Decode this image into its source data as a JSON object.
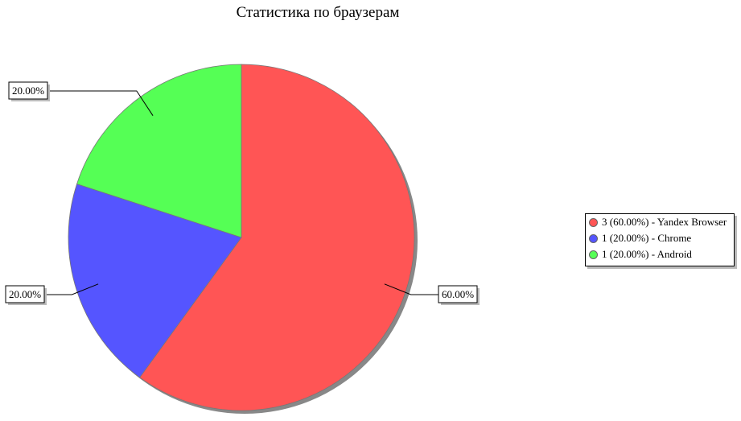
{
  "chart_data": {
    "type": "pie",
    "title": "Статистика по браузерам",
    "slices": [
      {
        "label": "Yandex Browser",
        "value": 3,
        "percent": "60.00%",
        "color": "#ff5555",
        "legend": "3 (60.00%) - Yandex Browser"
      },
      {
        "label": "Chrome",
        "value": 1,
        "percent": "20.00%",
        "color": "#5555ff",
        "legend": "1 (20.00%) - Chrome"
      },
      {
        "label": "Android",
        "value": 1,
        "percent": "20.00%",
        "color": "#55ff55",
        "legend": "1 (20.00%) - Android"
      }
    ],
    "start_angle": "top, clockwise",
    "legend_position": "right"
  }
}
